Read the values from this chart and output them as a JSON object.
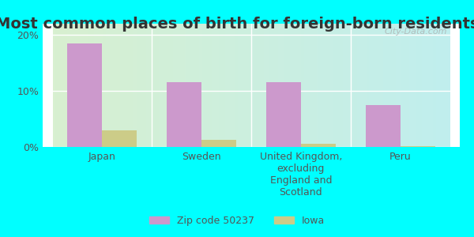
{
  "title": "Most common places of birth for foreign-born residents",
  "categories": [
    "Japan",
    "Sweden",
    "United Kingdom,\nexcluding\nEngland and\nScotland",
    "Peru"
  ],
  "zip_values": [
    18.5,
    11.5,
    11.5,
    7.5
  ],
  "iowa_values": [
    3.0,
    1.3,
    0.6,
    0.2
  ],
  "zip_color": "#cc99cc",
  "iowa_color": "#cccc88",
  "background_color": "#00ffff",
  "plot_bg_color_left": "#e8f5e0",
  "plot_bg_color_right": "#c8f0f0",
  "ylim": [
    0,
    22
  ],
  "yticks": [
    0,
    10,
    20
  ],
  "ytick_labels": [
    "0%",
    "10%",
    "20%"
  ],
  "legend_labels": [
    "Zip code 50237",
    "Iowa"
  ],
  "bar_width": 0.35,
  "watermark": "City-Data.com",
  "title_fontsize": 14,
  "tick_fontsize": 9,
  "legend_fontsize": 9
}
